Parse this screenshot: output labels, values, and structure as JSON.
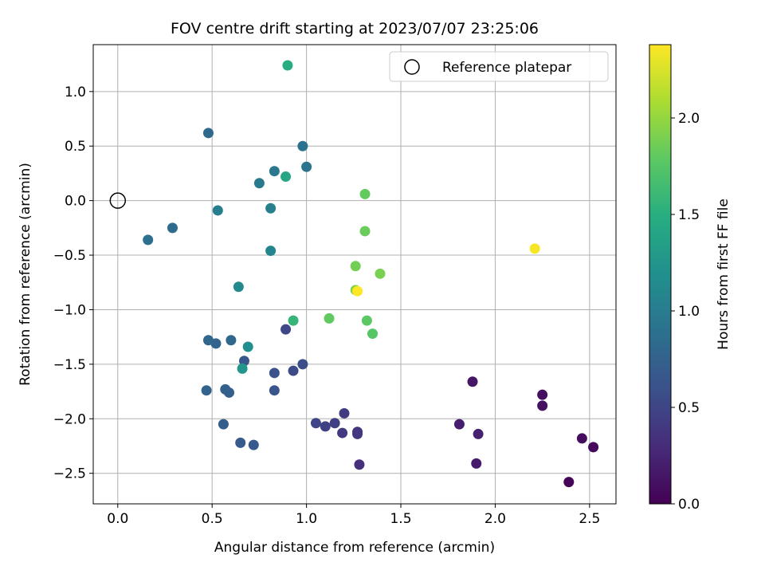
{
  "chart_data": {
    "type": "scatter",
    "title": "FOV centre drift starting at 2023/07/07 23:25:06",
    "xlabel": "Angular distance from reference (arcmin)",
    "ylabel": "Rotation from reference (arcmin)",
    "xlim": [
      -0.13,
      2.64
    ],
    "ylim": [
      -2.78,
      1.43
    ],
    "xticks": [
      0.0,
      0.5,
      1.0,
      1.5,
      2.0,
      2.5
    ],
    "xtick_labels": [
      "0.0",
      "0.5",
      "1.0",
      "1.5",
      "2.0",
      "2.5"
    ],
    "yticks": [
      1.0,
      0.5,
      0.0,
      -0.5,
      -1.0,
      -1.5,
      -2.0,
      -2.5
    ],
    "ytick_labels": [
      "1.0",
      "0.5",
      "0.0",
      "−0.5",
      "−1.0",
      "−1.5",
      "−2.0",
      "−2.5"
    ],
    "grid": true,
    "legend": {
      "position": "top-right",
      "entries": [
        "Reference platepar"
      ]
    },
    "reference_point": {
      "x": 0.0,
      "y": 0.0,
      "label": "Reference platepar"
    },
    "colorbar": {
      "label": "Hours from first FF file",
      "colormap": "viridis",
      "range": [
        0.0,
        2.38
      ],
      "ticks": [
        0.0,
        0.5,
        1.0,
        1.5,
        2.0
      ],
      "tick_labels": [
        "0.0",
        "0.5",
        "1.0",
        "1.5",
        "2.0"
      ]
    },
    "points": [
      {
        "x": 2.39,
        "y": -2.58,
        "c": 0.03
      },
      {
        "x": 2.52,
        "y": -2.26,
        "c": 0.05
      },
      {
        "x": 2.46,
        "y": -2.18,
        "c": 0.08
      },
      {
        "x": 2.25,
        "y": -1.78,
        "c": 0.1
      },
      {
        "x": 2.25,
        "y": -1.88,
        "c": 0.12
      },
      {
        "x": 1.88,
        "y": -1.66,
        "c": 0.15
      },
      {
        "x": 1.9,
        "y": -2.41,
        "c": 0.18
      },
      {
        "x": 1.81,
        "y": -2.05,
        "c": 0.2
      },
      {
        "x": 1.91,
        "y": -2.14,
        "c": 0.22
      },
      {
        "x": 1.28,
        "y": -2.42,
        "c": 0.33
      },
      {
        "x": 1.27,
        "y": -2.12,
        "c": 0.36
      },
      {
        "x": 1.27,
        "y": -2.14,
        "c": 0.38
      },
      {
        "x": 1.19,
        "y": -2.13,
        "c": 0.4
      },
      {
        "x": 1.2,
        "y": -1.95,
        "c": 0.42
      },
      {
        "x": 1.15,
        "y": -2.04,
        "c": 0.45
      },
      {
        "x": 1.1,
        "y": -2.07,
        "c": 0.47
      },
      {
        "x": 1.05,
        "y": -2.04,
        "c": 0.5
      },
      {
        "x": 0.89,
        "y": -1.18,
        "c": 0.52
      },
      {
        "x": 0.93,
        "y": -1.56,
        "c": 0.55
      },
      {
        "x": 0.98,
        "y": -1.5,
        "c": 0.57
      },
      {
        "x": 0.83,
        "y": -1.58,
        "c": 0.6
      },
      {
        "x": 0.83,
        "y": -1.74,
        "c": 0.63
      },
      {
        "x": 0.67,
        "y": -1.47,
        "c": 0.65
      },
      {
        "x": 0.72,
        "y": -2.24,
        "c": 0.67
      },
      {
        "x": 0.65,
        "y": -2.22,
        "c": 0.69
      },
      {
        "x": 0.56,
        "y": -2.05,
        "c": 0.71
      },
      {
        "x": 0.59,
        "y": -1.76,
        "c": 0.72
      },
      {
        "x": 0.57,
        "y": -1.73,
        "c": 0.73
      },
      {
        "x": 0.47,
        "y": -1.74,
        "c": 0.75
      },
      {
        "x": 0.52,
        "y": -1.31,
        "c": 0.77
      },
      {
        "x": 0.48,
        "y": -1.28,
        "c": 0.79
      },
      {
        "x": 0.6,
        "y": -1.28,
        "c": 0.81
      },
      {
        "x": 0.48,
        "y": 0.62,
        "c": 0.83
      },
      {
        "x": 0.29,
        "y": -0.25,
        "c": 0.85
      },
      {
        "x": 0.16,
        "y": -0.36,
        "c": 0.87
      },
      {
        "x": 0.98,
        "y": 0.5,
        "c": 0.9
      },
      {
        "x": 1.0,
        "y": 0.31,
        "c": 0.92
      },
      {
        "x": 0.83,
        "y": 0.27,
        "c": 0.95
      },
      {
        "x": 0.75,
        "y": 0.16,
        "c": 0.98
      },
      {
        "x": 0.53,
        "y": -0.09,
        "c": 1.02
      },
      {
        "x": 0.81,
        "y": -0.07,
        "c": 1.05
      },
      {
        "x": 0.81,
        "y": -0.46,
        "c": 1.08
      },
      {
        "x": 0.64,
        "y": -0.79,
        "c": 1.12
      },
      {
        "x": 0.69,
        "y": -1.34,
        "c": 1.18
      },
      {
        "x": 0.66,
        "y": -1.54,
        "c": 1.25
      },
      {
        "x": 0.89,
        "y": 0.22,
        "c": 1.42
      },
      {
        "x": 0.9,
        "y": 1.24,
        "c": 1.48
      },
      {
        "x": 0.93,
        "y": -1.1,
        "c": 1.58
      },
      {
        "x": 1.35,
        "y": -1.22,
        "c": 1.75
      },
      {
        "x": 1.32,
        "y": -1.1,
        "c": 1.78
      },
      {
        "x": 1.12,
        "y": -1.08,
        "c": 1.8
      },
      {
        "x": 1.31,
        "y": 0.06,
        "c": 1.82
      },
      {
        "x": 1.31,
        "y": -0.28,
        "c": 1.84
      },
      {
        "x": 1.26,
        "y": -0.6,
        "c": 1.87
      },
      {
        "x": 1.39,
        "y": -0.67,
        "c": 1.9
      },
      {
        "x": 1.26,
        "y": -0.82,
        "c": 1.93
      },
      {
        "x": 1.27,
        "y": -0.83,
        "c": 2.38
      },
      {
        "x": 2.21,
        "y": -0.44,
        "c": 2.36
      }
    ]
  }
}
